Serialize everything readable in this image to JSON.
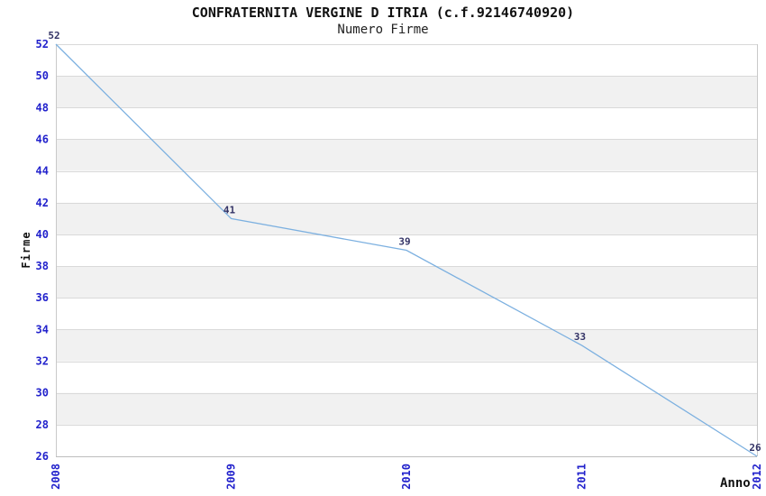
{
  "chart_data": {
    "type": "line",
    "title": "CONFRATERNITA VERGINE D ITRIA (c.f.92146740920)",
    "subtitle": "Numero Firme",
    "xlabel": "Anno",
    "ylabel": "Firme",
    "categories": [
      "2008",
      "2009",
      "2010",
      "2011",
      "2012"
    ],
    "values": [
      52,
      41,
      39,
      33,
      26
    ],
    "point_labels": [
      "52",
      "41",
      "39",
      "33",
      "26"
    ],
    "ylim": [
      26,
      52
    ],
    "ytick_step": 2,
    "grid": "horizontal",
    "legend": "none",
    "colors": {
      "line": "#7cb0e0",
      "band_even": "#ffffff",
      "band_odd": "#f1f1f1",
      "gridline": "#d9d9d9",
      "border": "#c9c9c9",
      "axis_line": "#bdbdbd",
      "tick_label": "#2222cc",
      "point_label": "#333366",
      "title_text": "#111111",
      "background": "#ffffff"
    }
  }
}
